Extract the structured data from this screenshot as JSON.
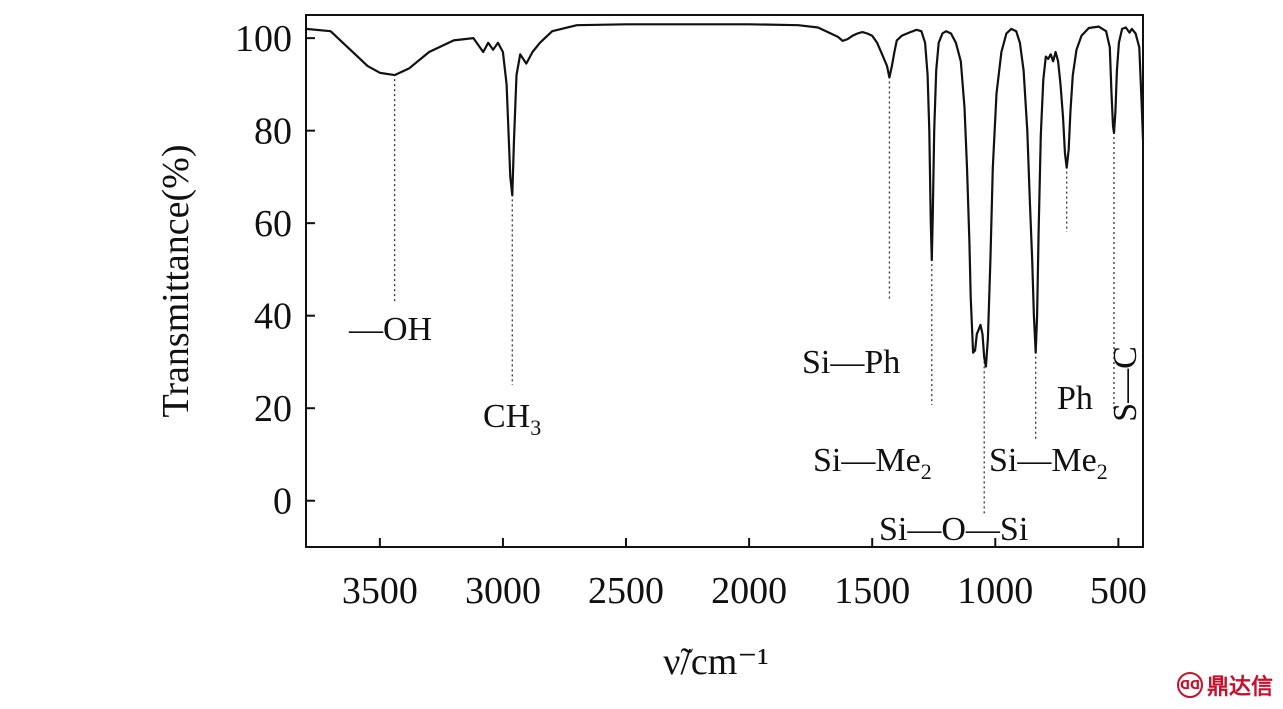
{
  "chart_data": {
    "type": "line",
    "title": "",
    "xlabel": "ν̃/cm⁻¹",
    "ylabel": "Transmittance(%)",
    "xlim": [
      3800,
      400
    ],
    "ylim": [
      -10,
      105
    ],
    "x_reversed": true,
    "grid": false,
    "x_ticks": [
      3500,
      3000,
      2500,
      2000,
      1500,
      1000,
      500
    ],
    "y_ticks": [
      100,
      80,
      60,
      40,
      20,
      0
    ],
    "series": [
      {
        "values": [
          [
            3800,
            102
          ],
          [
            3700,
            101.5
          ],
          [
            3650,
            99
          ],
          [
            3600,
            96.5
          ],
          [
            3550,
            94
          ],
          [
            3500,
            92.5
          ],
          [
            3440,
            92
          ],
          [
            3380,
            93.5
          ],
          [
            3300,
            97
          ],
          [
            3200,
            99.5
          ],
          [
            3120,
            100
          ],
          [
            3080,
            97
          ],
          [
            3060,
            99
          ],
          [
            3040,
            97.5
          ],
          [
            3020,
            99
          ],
          [
            3000,
            97
          ],
          [
            2985,
            90
          ],
          [
            2970,
            70
          ],
          [
            2962,
            66
          ],
          [
            2955,
            78
          ],
          [
            2945,
            92
          ],
          [
            2930,
            96.5
          ],
          [
            2905,
            94.5
          ],
          [
            2880,
            97
          ],
          [
            2850,
            99
          ],
          [
            2800,
            101.5
          ],
          [
            2700,
            102.8
          ],
          [
            2500,
            103
          ],
          [
            2000,
            103
          ],
          [
            1800,
            102.8
          ],
          [
            1720,
            102.3
          ],
          [
            1680,
            101.3
          ],
          [
            1640,
            100.3
          ],
          [
            1620,
            99.4
          ],
          [
            1600,
            99.8
          ],
          [
            1580,
            100.5
          ],
          [
            1560,
            101
          ],
          [
            1540,
            101.3
          ],
          [
            1520,
            101
          ],
          [
            1500,
            100.5
          ],
          [
            1480,
            99
          ],
          [
            1460,
            96.5
          ],
          [
            1440,
            94
          ],
          [
            1430,
            91.5
          ],
          [
            1420,
            94
          ],
          [
            1410,
            97
          ],
          [
            1400,
            99.5
          ],
          [
            1380,
            100.5
          ],
          [
            1350,
            101.2
          ],
          [
            1320,
            101.8
          ],
          [
            1300,
            101.5
          ],
          [
            1285,
            99
          ],
          [
            1275,
            92
          ],
          [
            1268,
            80
          ],
          [
            1262,
            60
          ],
          [
            1258,
            52
          ],
          [
            1254,
            62
          ],
          [
            1248,
            80
          ],
          [
            1240,
            93
          ],
          [
            1230,
            99
          ],
          [
            1215,
            101
          ],
          [
            1200,
            101.5
          ],
          [
            1180,
            101
          ],
          [
            1160,
            99
          ],
          [
            1140,
            95
          ],
          [
            1125,
            85
          ],
          [
            1115,
            72
          ],
          [
            1105,
            56
          ],
          [
            1100,
            44
          ],
          [
            1090,
            32
          ],
          [
            1082,
            32.5
          ],
          [
            1075,
            36
          ],
          [
            1060,
            38
          ],
          [
            1052,
            36
          ],
          [
            1045,
            31
          ],
          [
            1038,
            29
          ],
          [
            1030,
            35
          ],
          [
            1020,
            52
          ],
          [
            1010,
            72
          ],
          [
            995,
            88
          ],
          [
            975,
            97
          ],
          [
            955,
            101
          ],
          [
            935,
            102
          ],
          [
            915,
            101.5
          ],
          [
            900,
            99
          ],
          [
            885,
            93
          ],
          [
            870,
            80
          ],
          [
            860,
            65
          ],
          [
            850,
            52
          ],
          [
            843,
            40
          ],
          [
            836,
            32
          ],
          [
            830,
            40
          ],
          [
            824,
            58
          ],
          [
            815,
            79
          ],
          [
            805,
            91
          ],
          [
            795,
            96
          ],
          [
            785,
            95.5
          ],
          [
            775,
            96.5
          ],
          [
            765,
            95
          ],
          [
            755,
            97
          ],
          [
            745,
            95
          ],
          [
            735,
            90
          ],
          [
            725,
            83
          ],
          [
            717,
            75
          ],
          [
            710,
            72
          ],
          [
            702,
            76
          ],
          [
            695,
            84
          ],
          [
            685,
            92
          ],
          [
            670,
            97.5
          ],
          [
            650,
            100.5
          ],
          [
            620,
            102.2
          ],
          [
            580,
            102.5
          ],
          [
            550,
            101.5
          ],
          [
            535,
            98
          ],
          [
            528,
            88
          ],
          [
            522,
            81
          ],
          [
            518,
            79.5
          ],
          [
            512,
            84
          ],
          [
            506,
            93
          ],
          [
            498,
            99
          ],
          [
            485,
            102
          ],
          [
            470,
            102.3
          ],
          [
            455,
            101.2
          ],
          [
            445,
            102
          ],
          [
            430,
            101
          ],
          [
            415,
            98
          ],
          [
            405,
            85
          ],
          [
            400,
            78
          ]
        ]
      }
    ],
    "annotations": [
      {
        "label": "—OH",
        "x": 3440
      },
      {
        "label": "CH",
        "sub": "3",
        "x": 2962
      },
      {
        "label": "Si—Ph",
        "x": 1430
      },
      {
        "label": "Si—Me",
        "sub": "2",
        "x": 1258
      },
      {
        "label": "Si—O—Si",
        "x": 1045
      },
      {
        "label": "Si—Me",
        "sub": "2",
        "x": 836
      },
      {
        "label": "Ph",
        "x": 710
      },
      {
        "label": "S—C",
        "x": 518
      }
    ]
  },
  "watermark": {
    "logo_text": "ᗡᗡ",
    "text": "鼎达信",
    "color": "#c8102e"
  }
}
